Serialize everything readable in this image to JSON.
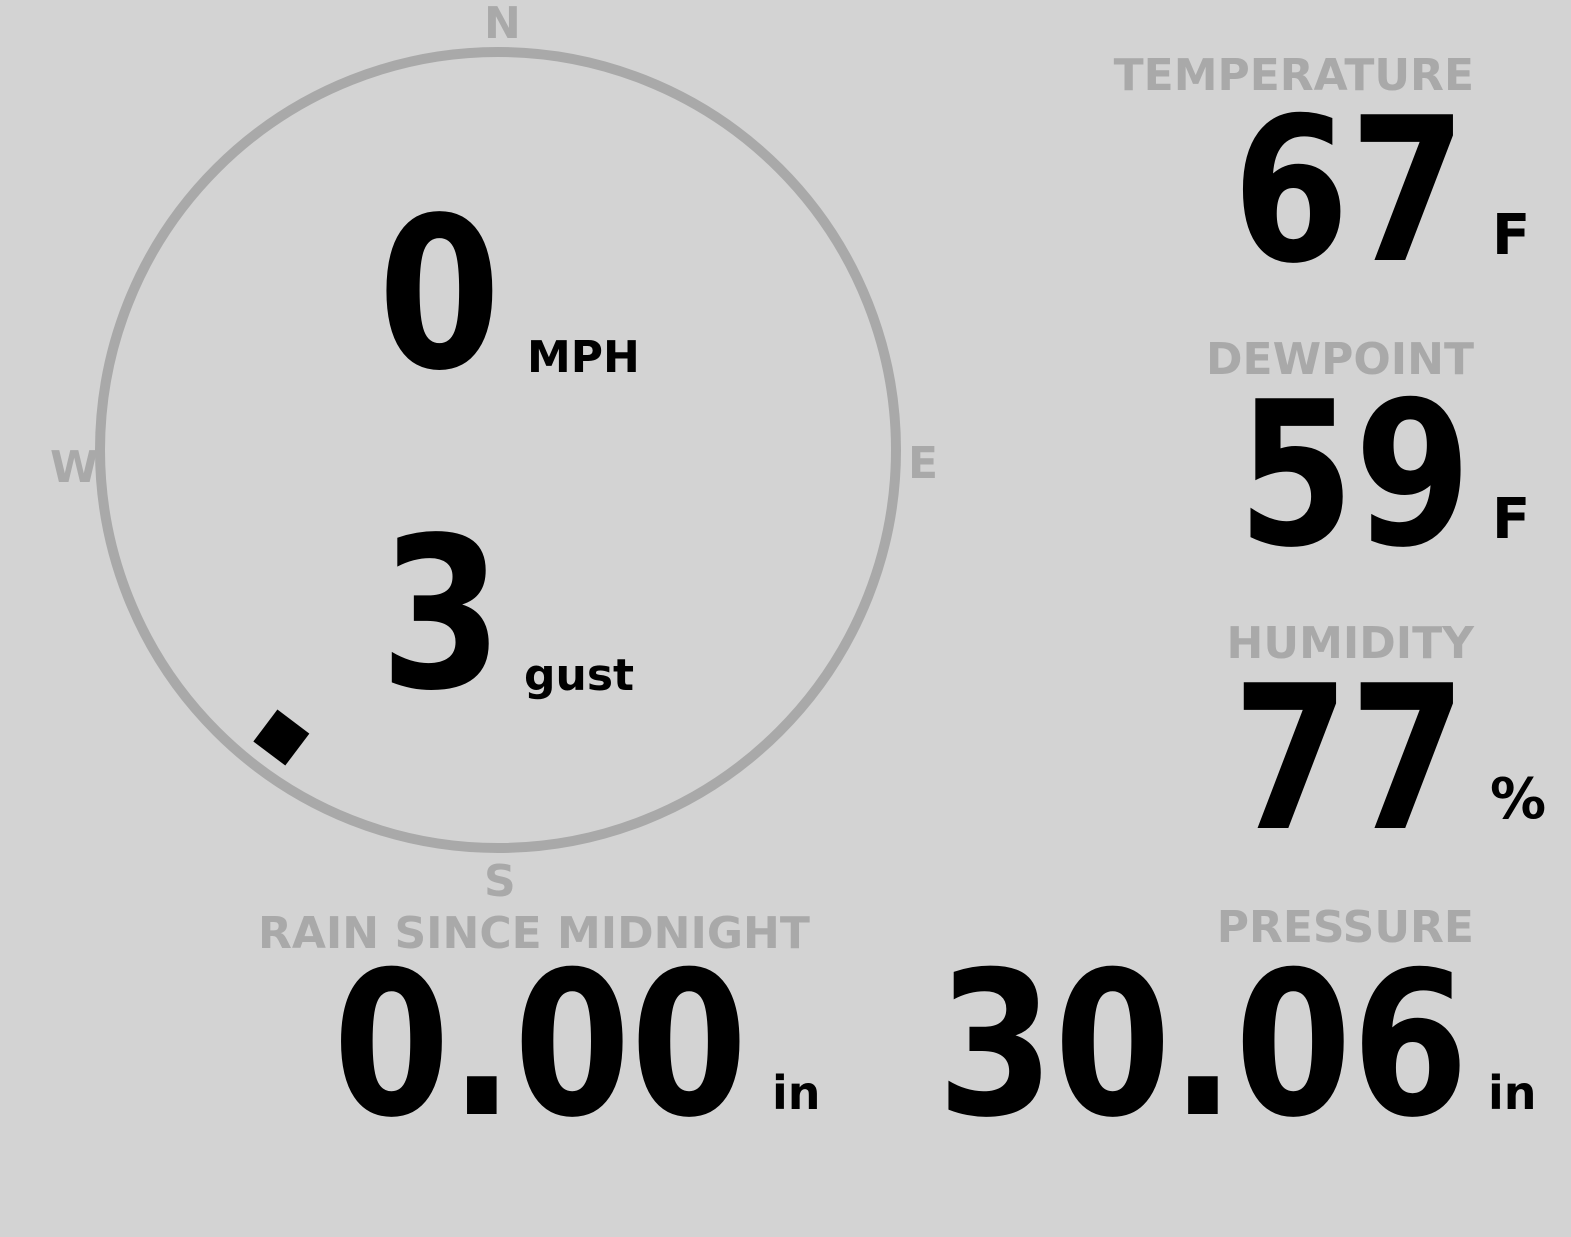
{
  "wind": {
    "speed": "0",
    "speed_unit": "MPH",
    "gust": "3",
    "gust_label": "gust",
    "direction_degrees": 217,
    "compass": {
      "n": "N",
      "e": "E",
      "s": "S",
      "w": "W"
    }
  },
  "temperature": {
    "label": "TEMPERATURE",
    "value": "67",
    "unit": "F"
  },
  "dewpoint": {
    "label": "DEWPOINT",
    "value": "59",
    "unit": "F"
  },
  "humidity": {
    "label": "HUMIDITY",
    "value": "77",
    "unit": "%"
  },
  "rain": {
    "label": "RAIN SINCE MIDNIGHT",
    "value": "0.00",
    "unit": "in"
  },
  "pressure": {
    "label": "PRESSURE",
    "value": "30.06",
    "unit": "in"
  },
  "colors": {
    "background": "#d3d3d3",
    "label": "#a9a9a9",
    "value": "#000000"
  }
}
